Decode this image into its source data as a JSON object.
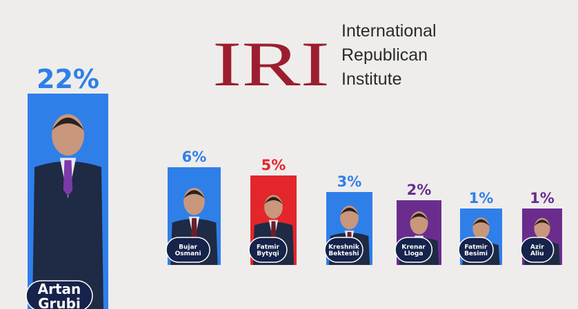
{
  "header": {
    "logo": "IRI",
    "lines": [
      "International",
      "Republican",
      "Institute"
    ]
  },
  "chart_data": {
    "type": "bar",
    "categories": [
      "Artan Grubi",
      "Bujar Osmani",
      "Fatmir Bytyqi",
      "Kreshnik Bekteshi",
      "Krenar Lloga",
      "Fatmir Besimi",
      "Azir Aliu"
    ],
    "values": [
      22,
      6,
      5,
      3,
      2,
      1,
      1
    ],
    "value_labels": [
      "22%",
      "6%",
      "5%",
      "3%",
      "2%",
      "1%",
      "1%"
    ],
    "colors": [
      "#2f7fe9",
      "#2f7fe9",
      "#e3262b",
      "#2f7fe9",
      "#6a2d8e",
      "#2f7fe9",
      "#6a2d8e"
    ]
  }
}
